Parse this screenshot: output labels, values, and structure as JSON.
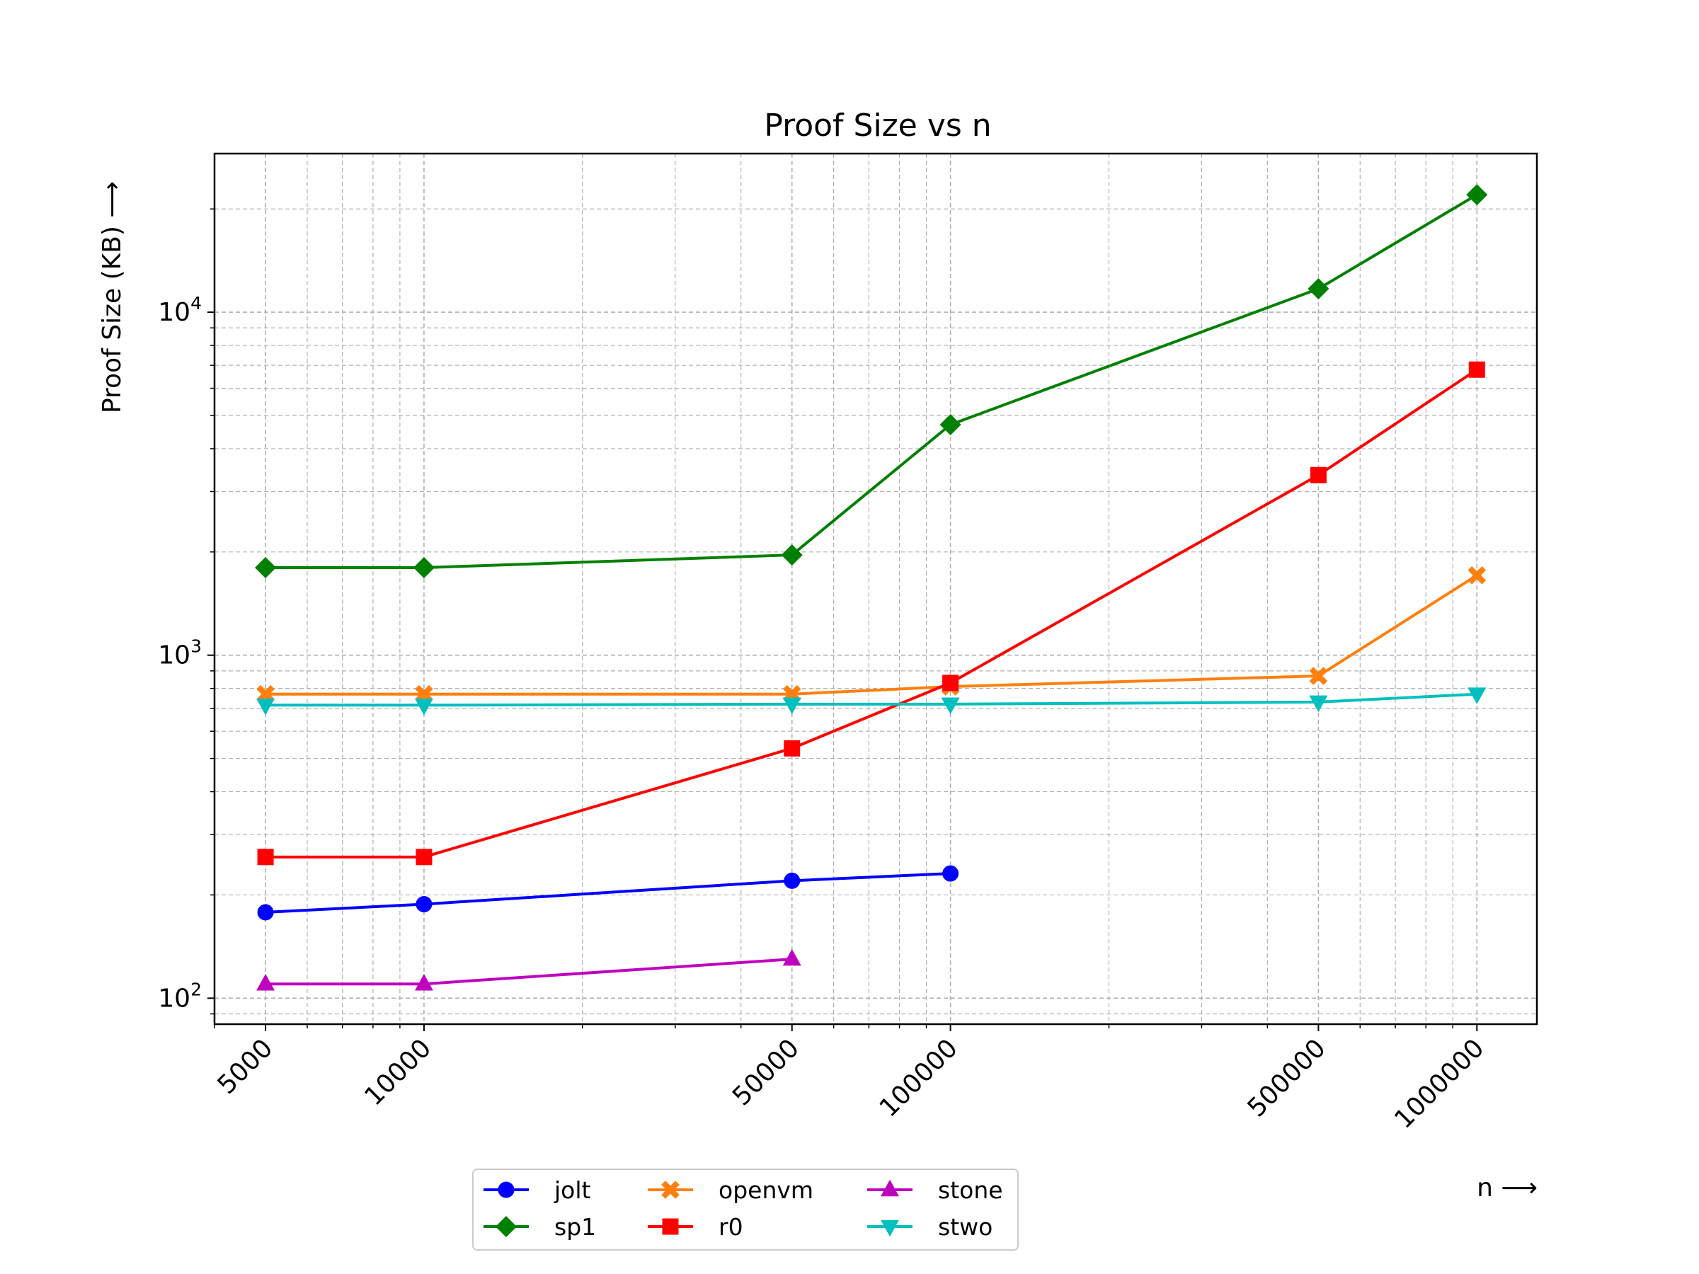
{
  "chart_data": {
    "type": "line",
    "title": "Proof Size vs n",
    "xlabel": "n ⟶",
    "ylabel": "Proof Size (KB) ⟶",
    "xscale": "log",
    "yscale": "log",
    "xlim": [
      4000,
      1300000
    ],
    "ylim": [
      84,
      29000
    ],
    "x_ticks": [
      5000,
      10000,
      50000,
      100000,
      500000,
      1000000
    ],
    "x_tick_labels": [
      "5000",
      "10000",
      "50000",
      "100000",
      "500000",
      "1000000"
    ],
    "y_ticks": [
      100,
      1000,
      10000
    ],
    "y_tick_labels": [
      {
        "base": "10",
        "exp": "2"
      },
      {
        "base": "10",
        "exp": "3"
      },
      {
        "base": "10",
        "exp": "4"
      }
    ],
    "grid": "major and minor, dashed",
    "legend_position": "below plot, left of center",
    "legend_columns": 3,
    "series": [
      {
        "name": "jolt",
        "color": "#0000ff",
        "marker": "circle",
        "x": [
          5000,
          10000,
          50000,
          100000
        ],
        "y": [
          178,
          188,
          220,
          231
        ]
      },
      {
        "name": "sp1",
        "color": "#008000",
        "marker": "diamond",
        "x": [
          5000,
          10000,
          50000,
          100000,
          500000,
          1000000
        ],
        "y": [
          1800,
          1800,
          1960,
          4700,
          11700,
          22000
        ]
      },
      {
        "name": "openvm",
        "color": "#ff7f0e",
        "marker": "x-filled",
        "x": [
          5000,
          10000,
          50000,
          100000,
          500000,
          1000000
        ],
        "y": [
          770,
          770,
          770,
          810,
          870,
          1710
        ]
      },
      {
        "name": "r0",
        "color": "#ff0000",
        "marker": "square",
        "x": [
          5000,
          10000,
          50000,
          100000,
          500000,
          1000000
        ],
        "y": [
          258,
          258,
          535,
          830,
          3350,
          6800
        ]
      },
      {
        "name": "stone",
        "color": "#bf00bf",
        "marker": "triangle-up",
        "x": [
          5000,
          10000,
          50000
        ],
        "y": [
          110,
          110,
          130
        ]
      },
      {
        "name": "stwo",
        "color": "#00bfbf",
        "marker": "triangle-down",
        "x": [
          5000,
          10000,
          50000,
          100000,
          500000,
          1000000
        ],
        "y": [
          715,
          715,
          720,
          720,
          730,
          770
        ]
      }
    ]
  }
}
